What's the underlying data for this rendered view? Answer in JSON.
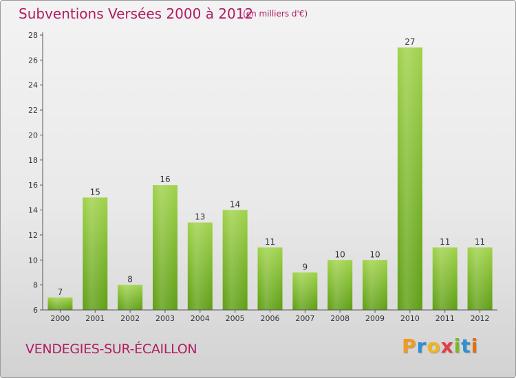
{
  "title": "Subventions Versées 2000 à 2012",
  "subtitle": "(en milliers d'€)",
  "location": "VENDEGIES-SUR-ÉCAILLON",
  "brand": {
    "letters": [
      "P",
      "r",
      "o",
      "x",
      "i",
      "t",
      "i"
    ],
    "colors": [
      "#f39a1e",
      "#2f8fd0",
      "#f0b41c",
      "#e0404a",
      "#7ab828",
      "#2f8fd0",
      "#e07010"
    ]
  },
  "colors": {
    "title": "#b01c62",
    "bar_top": "#9fd24a",
    "bar_bottom": "#5e9e14",
    "axis": "#555555"
  },
  "chart_data": {
    "type": "bar",
    "categories": [
      "2000",
      "2001",
      "2002",
      "2003",
      "2004",
      "2005",
      "2006",
      "2007",
      "2008",
      "2009",
      "2010",
      "2011",
      "2012"
    ],
    "values": [
      7,
      15,
      8,
      16,
      13,
      14,
      11,
      9,
      10,
      10,
      27,
      11,
      11
    ],
    "data_labels": [
      "7",
      "15",
      "8",
      "16",
      "13",
      "14",
      "11",
      "9",
      "10",
      "10",
      "27",
      "11",
      "11"
    ],
    "y_ticks": [
      "6",
      "8",
      "10",
      "12",
      "14",
      "16",
      "18",
      "20",
      "22",
      "24",
      "26",
      "28"
    ],
    "ylim": [
      6,
      28
    ],
    "title": "Subventions Versées 2000 à 2012",
    "xlabel": "",
    "ylabel": "",
    "grid": false,
    "legend": "none"
  }
}
